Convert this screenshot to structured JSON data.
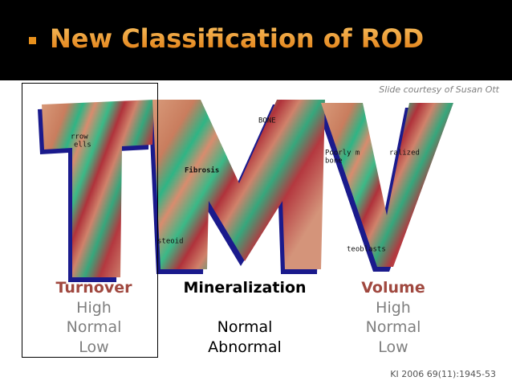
{
  "header": {
    "title": "New Classification of ROD"
  },
  "credit": "Slide courtesy of Susan Ott",
  "figure": {
    "labels": [
      "rrow",
      "ells",
      "BONE",
      "Fibrosis",
      "Poorly m",
      "ralized",
      "bone",
      "steoid",
      "teoblasts"
    ]
  },
  "columns": [
    {
      "heading": "Turnover",
      "items": [
        "High",
        "Normal",
        "Low"
      ]
    },
    {
      "heading": "Mineralization",
      "items": [
        "Normal",
        "Abnormal"
      ]
    },
    {
      "heading": "Volume",
      "items": [
        "High",
        "Normal",
        "Low"
      ]
    }
  ],
  "citation": "KI 2006 69(11):1945-53"
}
